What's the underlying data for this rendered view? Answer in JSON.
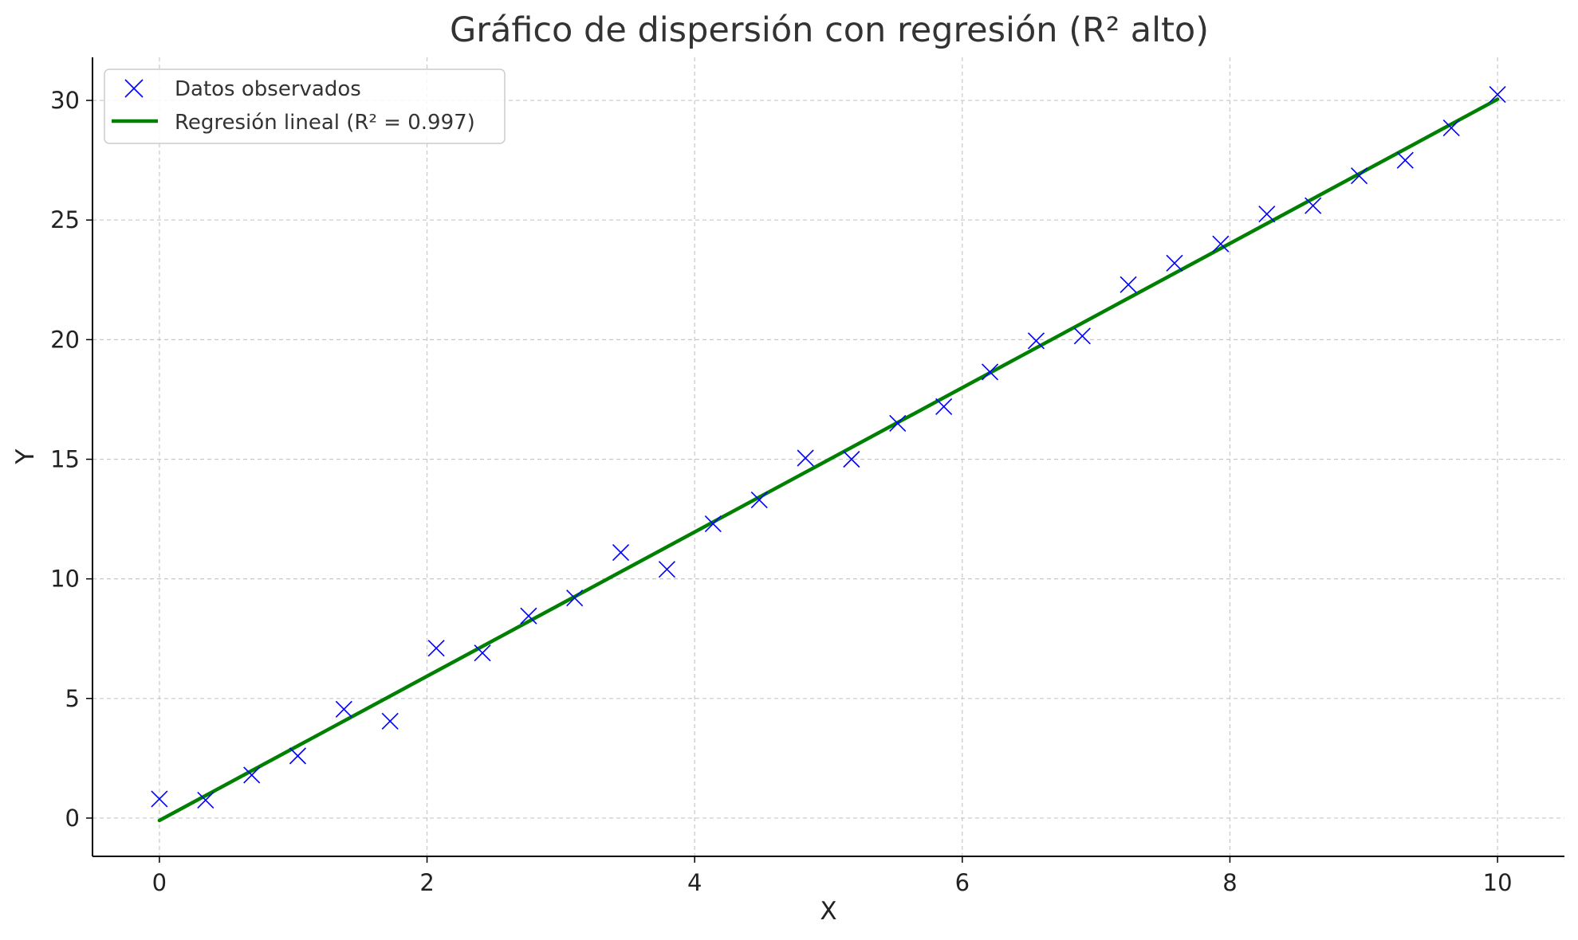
{
  "chart_data": {
    "type": "scatter",
    "title": "Gráfico de dispersión con regresión (R² alto)",
    "xlabel": "X",
    "ylabel": "Y",
    "xlim": [
      -0.5,
      10.5
    ],
    "ylim": [
      -1.6,
      31.8
    ],
    "xticks": [
      0,
      2,
      4,
      6,
      8,
      10
    ],
    "yticks": [
      0,
      5,
      10,
      15,
      20,
      25,
      30
    ],
    "grid": true,
    "legend_position": "top-left",
    "series": [
      {
        "name": "Datos observados",
        "kind": "scatter",
        "marker": "x",
        "color": "#0000ff",
        "x": [
          0,
          0.345,
          0.69,
          1.034,
          1.379,
          1.724,
          2.069,
          2.414,
          2.759,
          3.103,
          3.448,
          3.793,
          4.138,
          4.483,
          4.828,
          5.172,
          5.517,
          5.862,
          6.207,
          6.552,
          6.897,
          7.241,
          7.586,
          7.931,
          8.276,
          8.621,
          8.966,
          9.31,
          9.655,
          10
        ],
        "y": [
          0.8,
          0.75,
          1.8,
          2.6,
          4.55,
          4.05,
          7.1,
          6.9,
          8.45,
          9.2,
          11.1,
          10.4,
          12.3,
          13.3,
          15.05,
          15.0,
          16.5,
          17.2,
          18.65,
          19.95,
          20.15,
          22.3,
          23.2,
          24.0,
          25.25,
          25.6,
          26.85,
          27.5,
          28.85,
          30.25
        ]
      },
      {
        "name": "Regresión lineal (R² = 0.997)",
        "kind": "line",
        "color": "#008000",
        "x": [
          0,
          10
        ],
        "y": [
          -0.1,
          30.05
        ]
      }
    ]
  }
}
